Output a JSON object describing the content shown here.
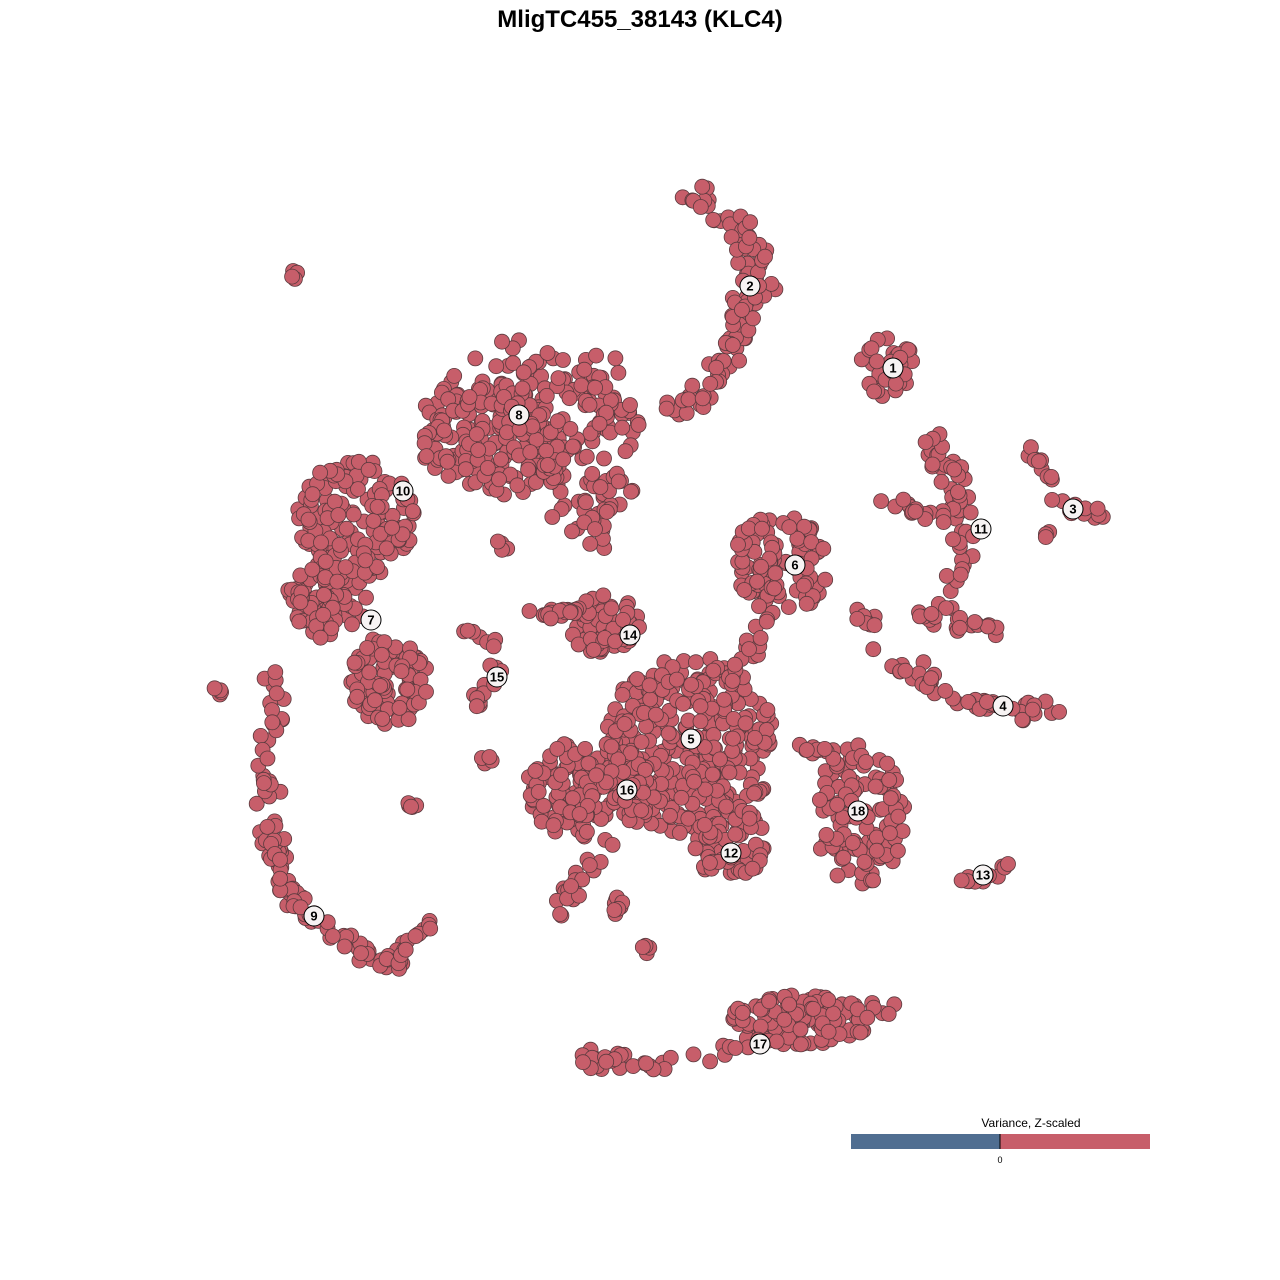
{
  "chart_data": {
    "type": "scatter",
    "title": "MligTC455_38143 (KLC4)",
    "xlabel": "",
    "ylabel": "",
    "grid": false,
    "axes_visible": false,
    "point_color": "#c75e6a",
    "point_stroke": "#5a3a3e",
    "clusters": [
      {
        "label": "1",
        "x": 25.3,
        "y": 27.2
      },
      {
        "label": "2",
        "x": 11.0,
        "y": 35.4
      },
      {
        "label": "3",
        "x": 43.3,
        "y": 13.1
      },
      {
        "label": "4",
        "x": 36.3,
        "y": -6.6
      },
      {
        "label": "5",
        "x": 5.1,
        "y": -9.9
      },
      {
        "label": "6",
        "x": 15.5,
        "y": 7.5
      },
      {
        "label": "7",
        "x": -26.9,
        "y": 2.0
      },
      {
        "label": "8",
        "x": -12.1,
        "y": 22.5
      },
      {
        "label": "9",
        "x": -32.6,
        "y": -27.6
      },
      {
        "label": "10",
        "x": -23.7,
        "y": 14.9
      },
      {
        "label": "11",
        "x": 34.1,
        "y": 11.1
      },
      {
        "label": "12",
        "x": 9.1,
        "y": -21.3
      },
      {
        "label": "13",
        "x": 34.3,
        "y": -23.5
      },
      {
        "label": "14",
        "x": -1.0,
        "y": 0.5
      },
      {
        "label": "15",
        "x": -14.3,
        "y": -3.7
      },
      {
        "label": "16",
        "x": -1.3,
        "y": -15.0
      },
      {
        "label": "17",
        "x": 12.0,
        "y": -40.4
      },
      {
        "label": "18",
        "x": 21.8,
        "y": -17.1
      }
    ],
    "legend": {
      "title": "Variance, Z-scaled",
      "placement": "bottom-right",
      "low_color": "#506e91",
      "high_color": "#c75e6a",
      "tick_labels": [
        "0"
      ]
    }
  }
}
